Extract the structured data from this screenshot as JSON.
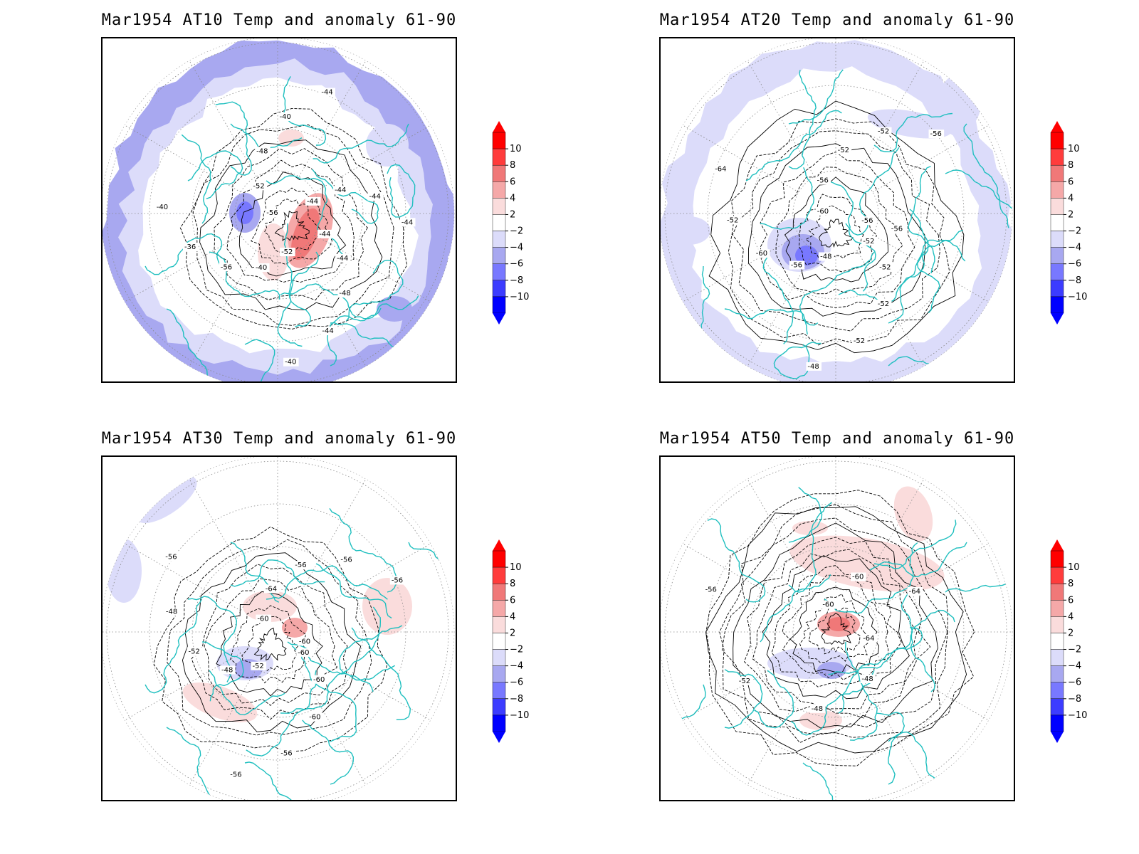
{
  "colors": {
    "coast": "#1fbfbf",
    "contour": "#000000",
    "grid": "#888888",
    "scale": [
      "#0000ff",
      "#3c3cff",
      "#7878ff",
      "#a8a8f0",
      "#dcdcfa",
      "#ffffff",
      "#fadcdc",
      "#f5a8a8",
      "#f07878",
      "#ff3c3c",
      "#ff0000"
    ]
  },
  "colorbar_ticks": [
    "10",
    "8",
    "6",
    "4",
    "2",
    "−2",
    "−4",
    "−6",
    "−8",
    "−10"
  ],
  "panels": [
    {
      "id": "at10",
      "title": "Mar1954 AT10 Temp and anomaly 61-90",
      "contour_labels": [
        "-44",
        "-44",
        "-48",
        "-44",
        "-40",
        "-52",
        "-40",
        "-56",
        "-36",
        "-40",
        "-56",
        "-52",
        "-48",
        "-40",
        "-44",
        "-44",
        "-44",
        "-44",
        "-44"
      ],
      "anomaly": "outer ring cold (-2 to -6), central warm core (+4 to +8) over Greenland/Atlantic sector, cold patch (-6) over central Asia"
    },
    {
      "id": "at20",
      "title": "Mar1954 AT20 Temp and anomaly 61-90",
      "contour_labels": [
        "-52",
        "-52",
        "-52",
        "-52",
        "-48",
        "-48",
        "-56",
        "-60",
        "-52",
        "-64",
        "-60",
        "-56",
        "-52",
        "-52",
        "-56",
        "-56",
        "-56"
      ],
      "anomaly": "outer ring cold (-2 to -4), strong cold core (-6 to -8) over Siberia"
    },
    {
      "id": "at30",
      "title": "Mar1954 AT30 Temp and anomaly 61-90",
      "contour_labels": [
        "-60",
        "-60",
        "-60",
        "-56",
        "-56",
        "-52",
        "-48",
        "-52",
        "-48",
        "-56",
        "-60",
        "-64",
        "-56",
        "-56",
        "-56",
        "-60"
      ],
      "anomaly": "warm patches (+2 to +4) near pole and Pacific, cold core (-4) over Siberia, cold patch in upper-left corner"
    },
    {
      "id": "at50",
      "title": "Mar1954 AT50 Temp and anomaly 61-90",
      "contour_labels": [
        "-64",
        "-48",
        "-48",
        "-52",
        "-56",
        "-60",
        "-60",
        "-64"
      ],
      "anomaly": "warm core (+4 to +6) near pole, warm arc over Atlantic, cold patch (-2 to -4) over Siberia, warm patch near Pacific"
    }
  ]
}
